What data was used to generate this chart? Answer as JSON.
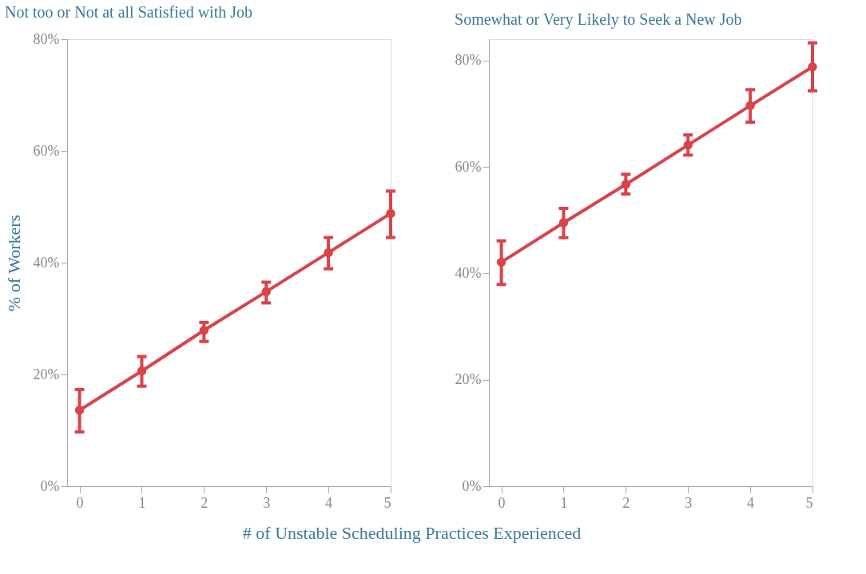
{
  "chart_data": [
    {
      "type": "line",
      "title": "Not too or Not at all Satisfied with Job",
      "ylabel": "% of Workers",
      "xlabel": "# of Unstable Scheduling Practices Experienced",
      "x": [
        0,
        1,
        2,
        3,
        4,
        5
      ],
      "series": [
        {
          "color": "#d9434a",
          "values": [
            13.6,
            20.6,
            27.9,
            34.8,
            41.8,
            48.8
          ],
          "errors": [
            [
              9.7,
              17.3
            ],
            [
              17.9,
              23.2
            ],
            [
              25.9,
              29.3
            ],
            [
              32.8,
              36.5
            ],
            [
              38.9,
              44.5
            ],
            [
              44.5,
              52.8
            ]
          ]
        }
      ],
      "xlim": [
        -0.2,
        5
      ],
      "xticks": [
        0,
        1,
        2,
        3,
        4,
        5
      ],
      "ylim": [
        0,
        80
      ],
      "yticks": [
        {
          "value": 0,
          "label": "0%"
        },
        {
          "value": 20,
          "label": "20%"
        },
        {
          "value": 40,
          "label": "40%"
        },
        {
          "value": 60,
          "label": "60%"
        },
        {
          "value": 80,
          "label": "80%"
        }
      ],
      "marker": "circle",
      "line_style": "solid",
      "grid": false
    },
    {
      "type": "line",
      "title": "Somewhat or Very Likely to Seek a New Job",
      "x": [
        0,
        1,
        2,
        3,
        4,
        5
      ],
      "series": [
        {
          "color": "#d9434a",
          "values": [
            42.1,
            49.5,
            56.7,
            64.1,
            71.5,
            78.8
          ],
          "errors": [
            [
              37.9,
              46.1
            ],
            [
              46.7,
              52.2
            ],
            [
              54.9,
              58.6
            ],
            [
              62.2,
              66.0
            ],
            [
              68.4,
              74.5
            ],
            [
              74.3,
              83.3
            ]
          ]
        }
      ],
      "xlim": [
        -0.2,
        5
      ],
      "xticks": [
        0,
        1,
        2,
        3,
        4,
        5
      ],
      "ylim": [
        0,
        84
      ],
      "yticks": [
        {
          "value": 0,
          "label": "0%"
        },
        {
          "value": 20,
          "label": "20%"
        },
        {
          "value": 40,
          "label": "40%"
        },
        {
          "value": 60,
          "label": "60%"
        },
        {
          "value": 80,
          "label": "80%"
        }
      ],
      "marker": "circle",
      "line_style": "solid",
      "grid": false
    }
  ]
}
